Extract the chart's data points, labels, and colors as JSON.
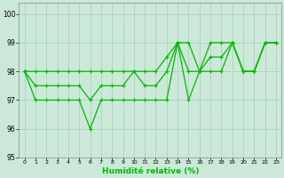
{
  "xlabel": "Humidité relative (%)",
  "bg_color": "#cce8d8",
  "grid_color": "#aaccbb",
  "line_color": "#00bb00",
  "xlim": [
    -0.5,
    23.5
  ],
  "ylim": [
    95,
    100.4
  ],
  "yticks": [
    95,
    96,
    97,
    98,
    99,
    100
  ],
  "xticks": [
    0,
    1,
    2,
    3,
    4,
    5,
    6,
    7,
    8,
    9,
    10,
    11,
    12,
    13,
    14,
    15,
    16,
    17,
    18,
    19,
    20,
    21,
    22,
    23
  ],
  "series_min": [
    98,
    97,
    97,
    97,
    97,
    97,
    96,
    97,
    97,
    97,
    97,
    97,
    97,
    97,
    99,
    97,
    98,
    98,
    98,
    99,
    98,
    98,
    99,
    99
  ],
  "series_mean": [
    98,
    97.5,
    97.5,
    97.5,
    97.5,
    97.5,
    97,
    97.5,
    97.5,
    97.5,
    98,
    97.5,
    97.5,
    98,
    99,
    98,
    98,
    98.5,
    98.5,
    99,
    98,
    98,
    99,
    99
  ],
  "series_max": [
    98,
    98,
    98,
    98,
    98,
    98,
    98,
    98,
    98,
    98,
    98,
    98,
    98,
    98.5,
    99,
    99,
    98,
    99,
    99,
    99,
    98,
    98,
    99,
    99
  ]
}
